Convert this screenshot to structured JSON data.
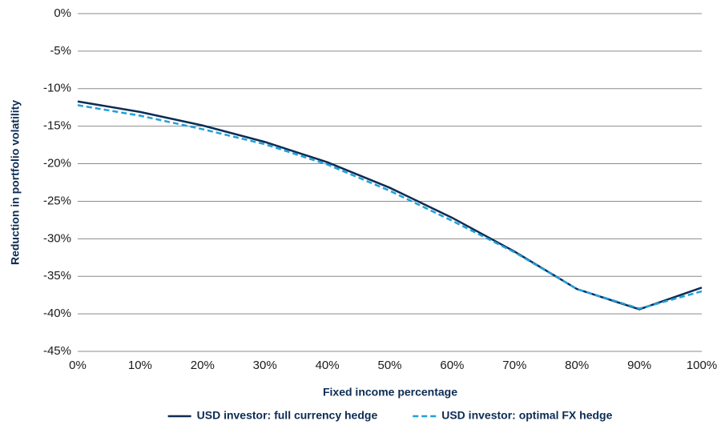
{
  "chart_data": {
    "type": "line",
    "x_label": "Fixed income percentage",
    "y_label": "Reduction in portfolio volatility",
    "x": [
      0,
      10,
      20,
      30,
      40,
      50,
      60,
      70,
      80,
      90,
      100
    ],
    "series": [
      {
        "name": "USD investor: full currency hedge",
        "color": "#0d2c54",
        "style": "solid",
        "values": [
          -11.7,
          -13.1,
          -14.9,
          -17.1,
          -19.8,
          -23.2,
          -27.2,
          -31.7,
          -36.7,
          -39.4,
          -36.5
        ]
      },
      {
        "name": "USD investor: optimal FX hedge",
        "color": "#1ea0dc",
        "style": "dashed",
        "values": [
          -12.2,
          -13.6,
          -15.4,
          -17.4,
          -20.1,
          -23.6,
          -27.6,
          -31.8,
          -36.7,
          -39.3,
          -37.0
        ]
      }
    ],
    "xlim": [
      0,
      100
    ],
    "xticks": [
      {
        "value": 0,
        "label": "0%"
      },
      {
        "value": 10,
        "label": "10%"
      },
      {
        "value": 20,
        "label": "20%"
      },
      {
        "value": 30,
        "label": "30%"
      },
      {
        "value": 40,
        "label": "40%"
      },
      {
        "value": 50,
        "label": "50%"
      },
      {
        "value": 60,
        "label": "60%"
      },
      {
        "value": 70,
        "label": "70%"
      },
      {
        "value": 80,
        "label": "80%"
      },
      {
        "value": 90,
        "label": "90%"
      },
      {
        "value": 100,
        "label": "100%"
      }
    ],
    "ylim": [
      -45,
      0
    ],
    "yticks": [
      {
        "value": 0,
        "label": "0%"
      },
      {
        "value": -5,
        "label": "-5%"
      },
      {
        "value": -10,
        "label": "-10%"
      },
      {
        "value": -15,
        "label": "-15%"
      },
      {
        "value": -20,
        "label": "-20%"
      },
      {
        "value": -25,
        "label": "-25%"
      },
      {
        "value": -30,
        "label": "-30%"
      },
      {
        "value": -35,
        "label": "-35%"
      },
      {
        "value": -40,
        "label": "-40%"
      },
      {
        "value": -45,
        "label": "-45%"
      }
    ],
    "grid": true,
    "legend": "bottom"
  }
}
